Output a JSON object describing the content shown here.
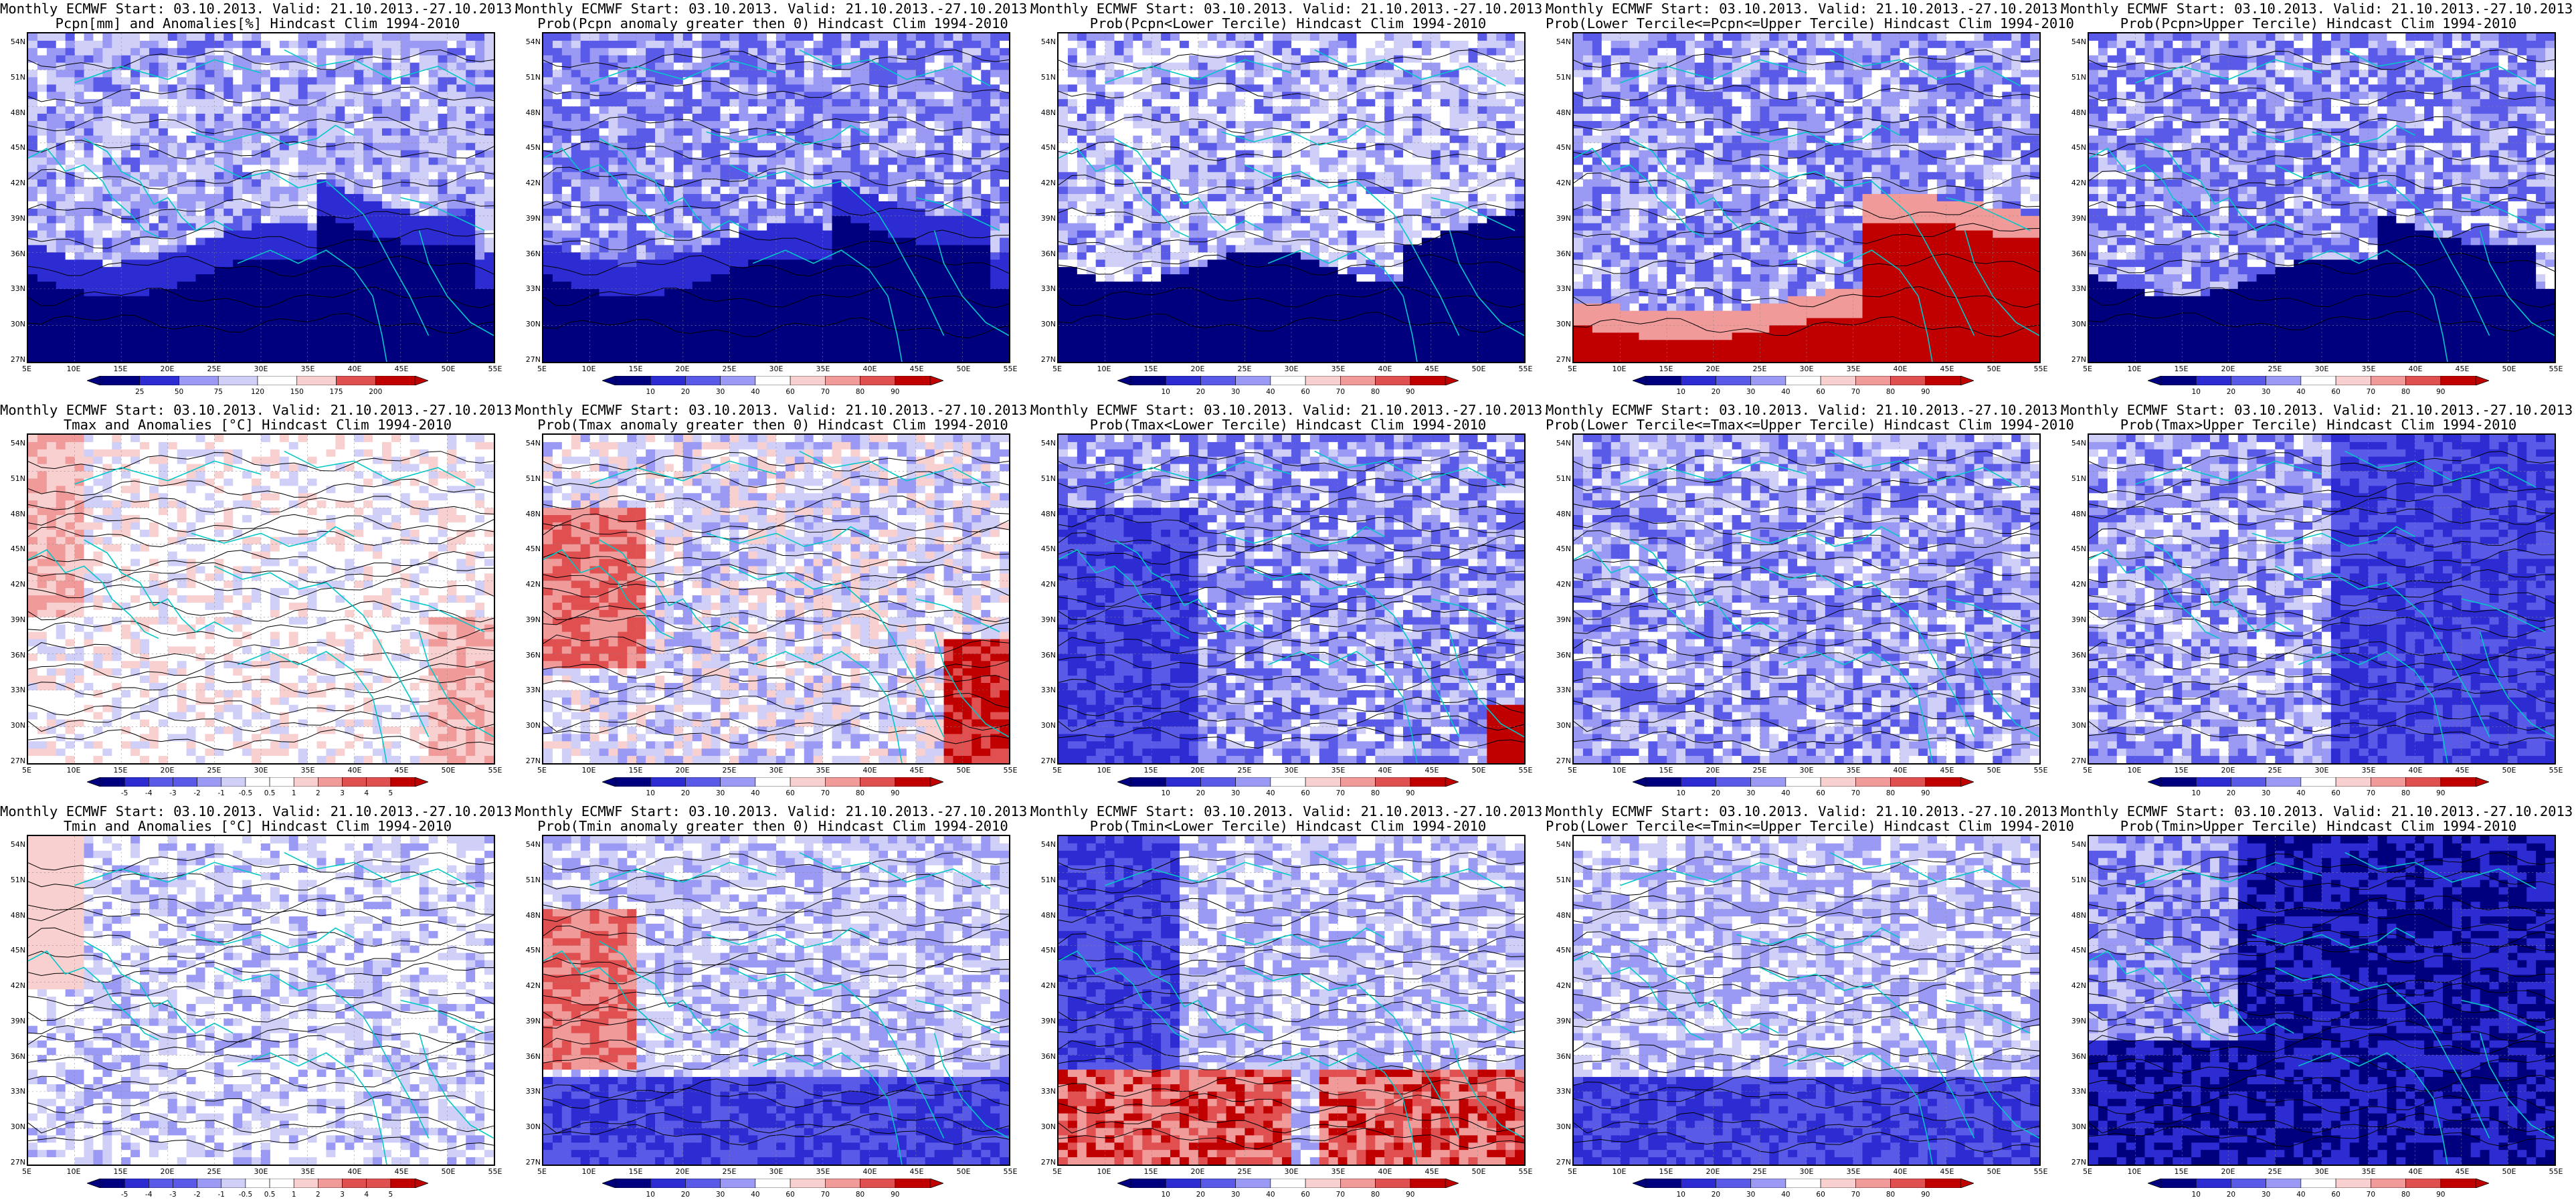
{
  "colors": {
    "coast": "#00c8c8",
    "contour": "#000000",
    "darkblue": "#00007f",
    "blue": "#2c2cd2",
    "midblue": "#5a5ae8",
    "lightblue": "#9a9af5",
    "paleblue": "#cfcff8",
    "white": "#ffffff",
    "palered": "#f8d0d0",
    "lightred": "#f09a9a",
    "red": "#e05050",
    "darkred": "#c00000"
  },
  "axes": {
    "lat_labels": [
      "54N",
      "51N",
      "48N",
      "45N",
      "42N",
      "39N",
      "36N",
      "33N",
      "30N",
      "27N"
    ],
    "lon_labels": [
      "5E",
      "10E",
      "15E",
      "20E",
      "25E",
      "30E",
      "35E",
      "40E",
      "45E",
      "50E",
      "55E"
    ]
  },
  "colorbars": {
    "precip_anom": [
      "25",
      "50",
      "75",
      "120",
      "150",
      "175",
      "200"
    ],
    "prob": [
      "10",
      "20",
      "30",
      "40",
      "60",
      "70",
      "80",
      "90"
    ],
    "temp_anom": [
      "-5",
      "-4",
      "-3",
      "-2",
      "-1",
      "-0.5",
      "0.5",
      "1",
      "2",
      "3",
      "4",
      "5"
    ]
  },
  "panels": [
    {
      "title1": "Monthly ECMWF Start: 03.10.2013. Valid: 21.10.2013.-27.10.2013.",
      "title2": "Pcpn[mm] and Anomalies[%]",
      "title2_suffix": " Hindcast Clim 1994-2010",
      "colorbar": "precip_anom",
      "icon": "precip-anomaly-map",
      "field": "pcpn_anom"
    },
    {
      "title1": "Monthly ECMWF Start: 03.10.2013. Valid: 21.10.2013.-27.10.2013.",
      "title2": "Prob(Pcpn anomaly greater then 0)",
      "title2_suffix": " Hindcast Clim 1994-2010",
      "colorbar": "prob",
      "icon": "prob-map",
      "field": "pcpn_pos"
    },
    {
      "title1": "Monthly ECMWF Start: 03.10.2013. Valid: 21.10.2013.-27.10.2013.",
      "title2": "Prob(Pcpn<Lower Tercile)",
      "title2_suffix": " Hindcast Clim 1994-2010",
      "colorbar": "prob",
      "icon": "prob-map",
      "field": "pcpn_low"
    },
    {
      "title1": "Monthly ECMWF Start: 03.10.2013. Valid: 21.10.2013.-27.10.2013.",
      "title2": "Prob(Lower Tercile<=Pcpn<=Upper Tercile)",
      "title2_suffix": " Hindcast Clim 1994-2010",
      "colorbar": "prob",
      "icon": "prob-map",
      "field": "pcpn_mid"
    },
    {
      "title1": "Monthly ECMWF Start: 03.10.2013. Valid: 21.10.2013.-27.10.2013.",
      "title2": "Prob(Pcpn>Upper Tercile)",
      "title2_suffix": " Hindcast Clim 1994-2010",
      "colorbar": "prob",
      "icon": "prob-map",
      "field": "pcpn_up"
    },
    {
      "title1": "Monthly ECMWF Start: 03.10.2013. Valid: 21.10.2013.-27.10.2013.",
      "title2": "Tmax and Anomalies [°C]",
      "title2_suffix": " Hindcast Clim 1994-2010",
      "colorbar": "temp_anom",
      "icon": "temp-anomaly-map",
      "field": "tmax_anom"
    },
    {
      "title1": "Monthly ECMWF Start: 03.10.2013. Valid: 21.10.2013.-27.10.2013.",
      "title2": "Prob(Tmax anomaly greater then 0)",
      "title2_suffix": " Hindcast Clim 1994-2010",
      "colorbar": "prob",
      "icon": "prob-map",
      "field": "tmax_pos"
    },
    {
      "title1": "Monthly ECMWF Start: 03.10.2013. Valid: 21.10.2013.-27.10.2013.",
      "title2": "Prob(Tmax<Lower Tercile)",
      "title2_suffix": " Hindcast Clim 1994-2010",
      "colorbar": "prob",
      "icon": "prob-map",
      "field": "tmax_low"
    },
    {
      "title1": "Monthly ECMWF Start: 03.10.2013. Valid: 21.10.2013.-27.10.2013.",
      "title2": "Prob(Lower Tercile<=Tmax<=Upper Tercile)",
      "title2_suffix": " Hindcast Clim 1994-2010",
      "colorbar": "prob",
      "icon": "prob-map",
      "field": "tmax_mid"
    },
    {
      "title1": "Monthly ECMWF Start: 03.10.2013. Valid: 21.10.2013.-27.10.2013.",
      "title2": "Prob(Tmax>Upper Tercile)",
      "title2_suffix": " Hindcast Clim 1994-2010",
      "colorbar": "prob",
      "icon": "prob-map",
      "field": "tmax_up"
    },
    {
      "title1": "Monthly ECMWF Start: 03.10.2013. Valid: 21.10.2013.-27.10.2013.",
      "title2": "Tmin and Anomalies [°C]",
      "title2_suffix": " Hindcast Clim 1994-2010",
      "colorbar": "temp_anom",
      "icon": "temp-anomaly-map",
      "field": "tmin_anom"
    },
    {
      "title1": "Monthly ECMWF Start: 03.10.2013. Valid: 21.10.2013.-27.10.2013.",
      "title2": "Prob(Tmin anomaly greater then 0)",
      "title2_suffix": " Hindcast Clim 1994-2010",
      "colorbar": "prob",
      "icon": "prob-map",
      "field": "tmin_pos"
    },
    {
      "title1": "Monthly ECMWF Start: 03.10.2013. Valid: 21.10.2013.-27.10.2013.",
      "title2": "Prob(Tmin<Lower Tercile)",
      "title2_suffix": " Hindcast Clim 1994-2010",
      "colorbar": "prob",
      "icon": "prob-map",
      "field": "tmin_low"
    },
    {
      "title1": "Monthly ECMWF Start: 03.10.2013. Valid: 21.10.2013.-27.10.2013.",
      "title2": "Prob(Lower Tercile<=Tmin<=Upper Tercile)",
      "title2_suffix": " Hindcast Clim 1994-2010",
      "colorbar": "prob",
      "icon": "prob-map",
      "field": "tmin_mid"
    },
    {
      "title1": "Monthly ECMWF Start: 03.10.2013. Valid: 21.10.2013.-27.10.2013.",
      "title2": "Prob(Tmin>Upper Tercile)",
      "title2_suffix": " Hindcast Clim 1994-2010",
      "colorbar": "prob",
      "icon": "prob-map",
      "field": "tmin_up"
    }
  ]
}
